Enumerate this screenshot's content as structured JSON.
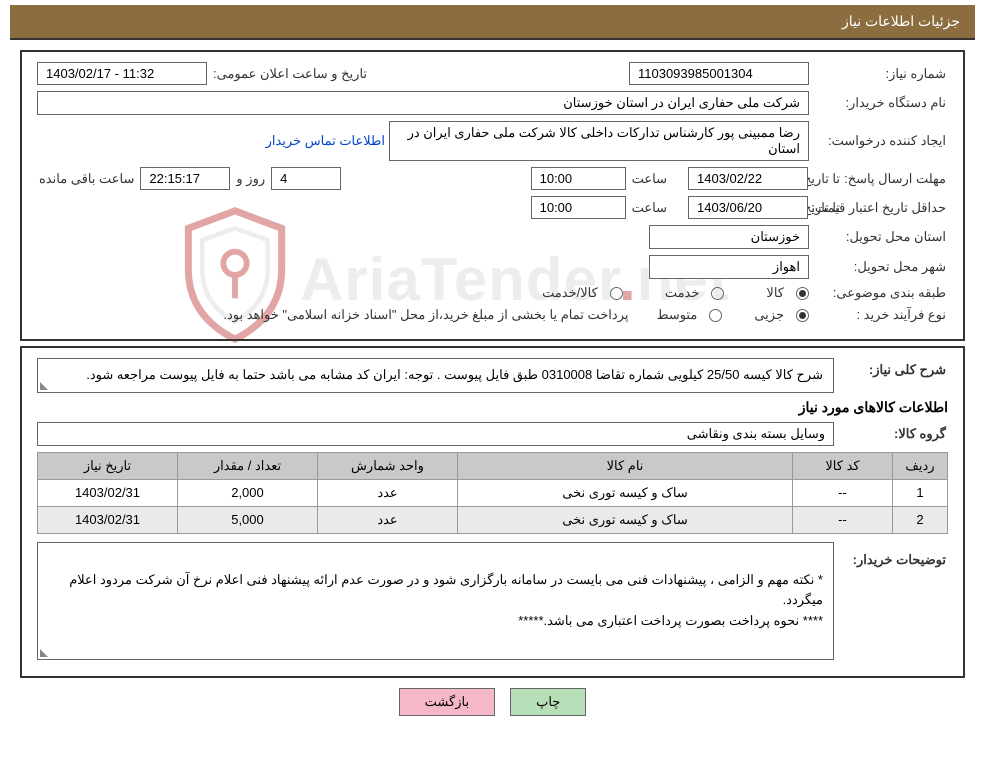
{
  "header": {
    "title": "جزئیات اطلاعات نیاز"
  },
  "form": {
    "need_no_label": "شماره نیاز:",
    "need_no": "1103093985001304",
    "announce_label": "تاریخ و ساعت اعلان عمومی:",
    "announce_value": "1403/02/17 - 11:32",
    "buyer_label": "نام دستگاه خریدار:",
    "buyer_value": "شرکت ملی حفاری ایران در استان خوزستان",
    "requester_label": "ایجاد کننده درخواست:",
    "requester_value": "رضا ممبینی پور کارشناس تدارکات داخلی کالا شرکت ملی حفاری ایران در استان",
    "contact_link": "اطلاعات تماس خریدار",
    "deadline_label": "مهلت ارسال پاسخ:",
    "until_label1": "تا تاریخ:",
    "deadline_date": "1403/02/22",
    "hour_label": "ساعت",
    "deadline_hour": "10:00",
    "days": "4",
    "days_label": "روز و",
    "remain_time": "22:15:17",
    "remain_label": "ساعت باقی مانده",
    "validity_label": "حداقل تاریخ اعتبار قیمت:",
    "until_label2": "تا تاریخ:",
    "validity_date": "1403/06/20",
    "validity_hour": "10:00",
    "province_label": "استان محل تحویل:",
    "province_value": "خوزستان",
    "city_label": "شهر محل تحویل:",
    "city_value": "اهواز",
    "category_label": "طبقه بندی موضوعی:",
    "cat_goods": "کالا",
    "cat_service": "خدمت",
    "cat_goods_service": "کالا/خدمت",
    "process_label": "نوع فرآیند خرید :",
    "proc_minor": "جزیی",
    "proc_medium": "متوسط",
    "process_note": "پرداخت تمام یا بخشی از مبلغ خرید،از محل \"اسناد خزانه اسلامی\" خواهد بود."
  },
  "details": {
    "desc_label": "شرح کلی نیاز:",
    "desc_text": "شرح کالا   کیسه 25/50 کیلویی   شماره تقاضا  0310008  طبق فایل پیوست . توجه: ایران کد مشابه می باشد حتما به فایل پیوست مراجعه شود.",
    "items_title": "اطلاعات کالاهای مورد نیاز",
    "group_label": "گروه کالا:",
    "group_value": "وسایل بسته بندی  ونقاشی",
    "table": {
      "headers": [
        "ردیف",
        "کد کالا",
        "نام کالا",
        "واحد شمارش",
        "تعداد / مقدار",
        "تاریخ نیاز"
      ],
      "rows": [
        [
          "1",
          "--",
          "ساک و کیسه توری نخی",
          "عدد",
          "2,000",
          "1403/02/31"
        ],
        [
          "2",
          "--",
          "ساک و کیسه توری نخی",
          "عدد",
          "5,000",
          "1403/02/31"
        ]
      ]
    },
    "buyer_note_label": "توضیحات خریدار:",
    "buyer_note_text": "*  نکته مهم و الزامی ، پیشنهادات فنی می بایست در سامانه بارگزاری شود و در صورت عدم ارائه پیشنهاد فنی اعلام نرخ آن شرکت مردود اعلام میگردد.\n****      نحوه پرداخت بصورت پرداخت اعتباری می باشد.*****"
  },
  "buttons": {
    "print": "چاپ",
    "back": "بازگشت"
  },
  "watermark": {
    "text_before": "AriaTender",
    "text_dot": ".",
    "text_after": "net"
  },
  "colors": {
    "header_bg": "#8c6d3f",
    "link": "#0044cc",
    "btn_print": "#b8e0b8",
    "btn_back": "#f5b8c8",
    "th_bg": "#c9c9c9"
  }
}
